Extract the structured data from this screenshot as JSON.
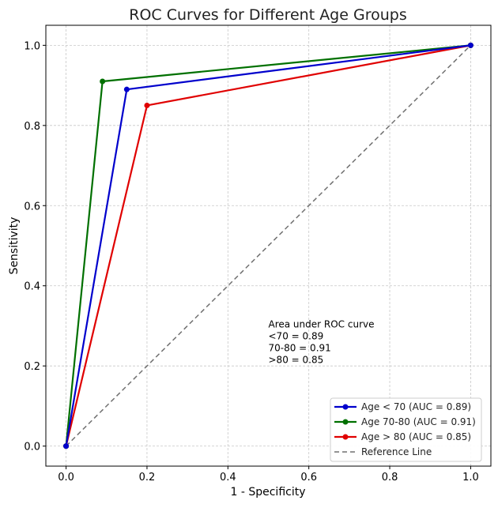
{
  "chart_data": {
    "type": "line",
    "title": "ROC Curves for Different Age Groups",
    "xlabel": "1 - Specificity",
    "ylabel": "Sensitivity",
    "xlim": [
      -0.05,
      1.05
    ],
    "ylim": [
      -0.05,
      1.05
    ],
    "xticks": [
      0.0,
      0.2,
      0.4,
      0.6,
      0.8,
      1.0
    ],
    "yticks": [
      0.0,
      0.2,
      0.4,
      0.6,
      0.8,
      1.0
    ],
    "xtick_labels": [
      "0.0",
      "0.2",
      "0.4",
      "0.6",
      "0.8",
      "1.0"
    ],
    "ytick_labels": [
      "0.0",
      "0.2",
      "0.4",
      "0.6",
      "0.8",
      "1.0"
    ],
    "grid": true,
    "legend_position": "lower-right",
    "series": [
      {
        "name": "Age < 70 (AUC = 0.89)",
        "color": "#0000cc",
        "x": [
          0.0,
          0.15,
          1.0
        ],
        "y": [
          0.0,
          0.89,
          1.0
        ],
        "markers": true,
        "dashed": false
      },
      {
        "name": "Age 70-80 (AUC = 0.91)",
        "color": "#007000",
        "x": [
          0.0,
          0.09,
          1.0
        ],
        "y": [
          0.0,
          0.91,
          1.0
        ],
        "markers": true,
        "dashed": false
      },
      {
        "name": "Age > 80 (AUC = 0.85)",
        "color": "#e00000",
        "x": [
          0.0,
          0.2,
          1.0
        ],
        "y": [
          0.0,
          0.85,
          1.0
        ],
        "markers": true,
        "dashed": false
      },
      {
        "name": "Reference Line",
        "color": "#707070",
        "x": [
          0.0,
          1.0
        ],
        "y": [
          0.0,
          1.0
        ],
        "markers": false,
        "dashed": true
      }
    ],
    "annotation": {
      "x": 0.5,
      "y": 0.29,
      "lines": [
        "Area under ROC curve",
        "<70 = 0.89",
        "70-80 = 0.91",
        ">80 = 0.85"
      ]
    }
  }
}
